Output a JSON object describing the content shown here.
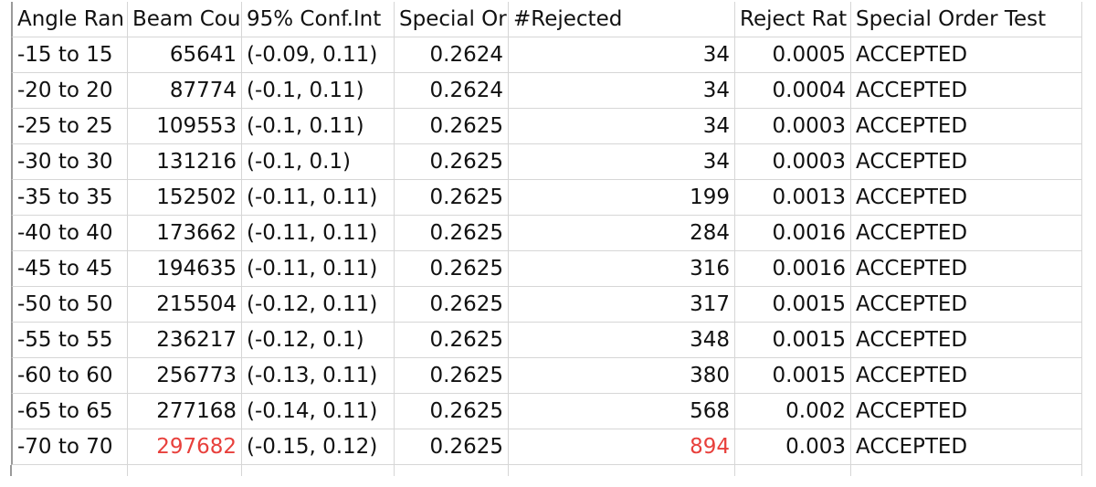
{
  "table": {
    "header": [
      "Angle Ran",
      "Beam Cou",
      "95% Conf.Int",
      "Special Or",
      "#Rejected",
      "Reject Rat",
      "Special Order Test"
    ],
    "rows": [
      [
        "-15 to 15",
        "65641",
        "(-0.09, 0.11)",
        "0.2624",
        "34",
        "0.0005",
        "ACCEPTED"
      ],
      [
        "-20 to 20",
        "87774",
        "(-0.1, 0.11)",
        "0.2624",
        "34",
        "0.0004",
        "ACCEPTED"
      ],
      [
        "-25 to 25",
        "109553",
        "(-0.1, 0.11)",
        "0.2625",
        "34",
        "0.0003",
        "ACCEPTED"
      ],
      [
        "-30 to 30",
        "131216",
        "(-0.1, 0.1)",
        "0.2625",
        "34",
        "0.0003",
        "ACCEPTED"
      ],
      [
        "-35 to 35",
        "152502",
        "(-0.11, 0.11)",
        "0.2625",
        "199",
        "0.0013",
        "ACCEPTED"
      ],
      [
        "-40 to 40",
        "173662",
        "(-0.11, 0.11)",
        "0.2625",
        "284",
        "0.0016",
        "ACCEPTED"
      ],
      [
        "-45 to 45",
        "194635",
        "(-0.11, 0.11)",
        "0.2625",
        "316",
        "0.0016",
        "ACCEPTED"
      ],
      [
        "-50 to 50",
        "215504",
        "(-0.12, 0.11)",
        "0.2625",
        "317",
        "0.0015",
        "ACCEPTED"
      ],
      [
        "-55 to 55",
        "236217",
        "(-0.12, 0.1)",
        "0.2625",
        "348",
        "0.0015",
        "ACCEPTED"
      ],
      [
        "-60 to 60",
        "256773",
        "(-0.13, 0.11)",
        "0.2625",
        "380",
        "0.0015",
        "ACCEPTED"
      ],
      [
        "-65 to 65",
        "277168",
        "(-0.14, 0.11)",
        "0.2625",
        "568",
        "0.002",
        "ACCEPTED"
      ],
      [
        "-70 to 70",
        {
          "text": "297682",
          "color": "#e8403c"
        },
        "(-0.15, 0.12)",
        "0.2625",
        {
          "text": "894",
          "color": "#e8403c"
        },
        "0.003",
        "ACCEPTED"
      ]
    ]
  }
}
